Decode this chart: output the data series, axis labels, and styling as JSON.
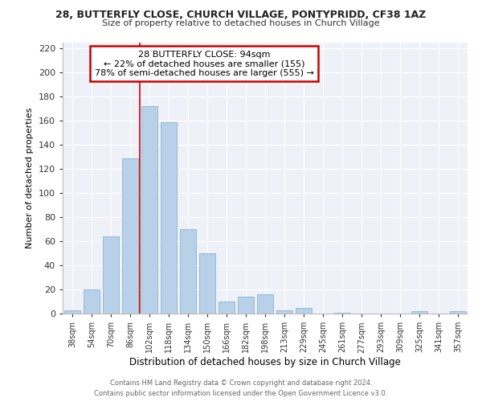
{
  "title": "28, BUTTERFLY CLOSE, CHURCH VILLAGE, PONTYPRIDD, CF38 1AZ",
  "subtitle": "Size of property relative to detached houses in Church Village",
  "xlabel": "Distribution of detached houses by size in Church Village",
  "ylabel": "Number of detached properties",
  "categories": [
    "38sqm",
    "54sqm",
    "70sqm",
    "86sqm",
    "102sqm",
    "118sqm",
    "134sqm",
    "150sqm",
    "166sqm",
    "182sqm",
    "198sqm",
    "213sqm",
    "229sqm",
    "245sqm",
    "261sqm",
    "277sqm",
    "293sqm",
    "309sqm",
    "325sqm",
    "341sqm",
    "357sqm"
  ],
  "values": [
    3,
    20,
    64,
    129,
    172,
    159,
    70,
    50,
    10,
    14,
    16,
    3,
    5,
    0,
    1,
    0,
    0,
    0,
    2,
    0,
    2
  ],
  "bar_color": "#b8d0e8",
  "bar_edge_color": "#8ab4d4",
  "annotation_label": "28 BUTTERFLY CLOSE: 94sqm",
  "annotation_line1": "← 22% of detached houses are smaller (155)",
  "annotation_line2": "78% of semi-detached houses are larger (555) →",
  "vline_x_index": 3.5,
  "vline_color": "#cc0000",
  "box_color": "#cc0000",
  "ylim": [
    0,
    225
  ],
  "yticks": [
    0,
    20,
    40,
    60,
    80,
    100,
    120,
    140,
    160,
    180,
    200,
    220
  ],
  "footer_line1": "Contains HM Land Registry data © Crown copyright and database right 2024.",
  "footer_line2": "Contains public sector information licensed under the Open Government Licence v3.0.",
  "bg_color": "#eef2f8"
}
